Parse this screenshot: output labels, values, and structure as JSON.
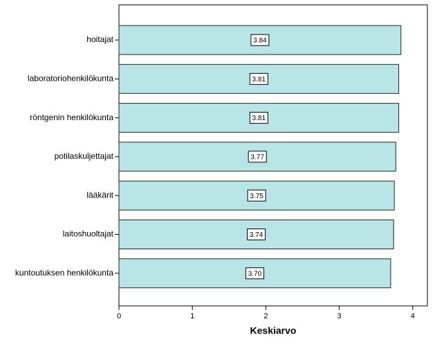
{
  "chart_data": {
    "type": "bar",
    "orientation": "horizontal",
    "x_label": "Keskiarvo",
    "categories": [
      "hoitajat",
      "laboratoriohenkilökunta",
      "röntgenin henkilökunta",
      "potilaskuljettajat",
      "lääkärit",
      "laitoshuoltajat",
      "kuntoutuksen henkilökunta"
    ],
    "values": [
      3.84,
      3.81,
      3.81,
      3.77,
      3.75,
      3.74,
      3.7
    ],
    "value_labels": [
      "3.84",
      "3.81",
      "3.81",
      "3.77",
      "3.75",
      "3.74",
      "3.70"
    ],
    "color": "#b9e5e7",
    "xlim": [
      0,
      4.2
    ],
    "xticks": [
      0,
      1,
      2,
      3,
      4
    ]
  }
}
